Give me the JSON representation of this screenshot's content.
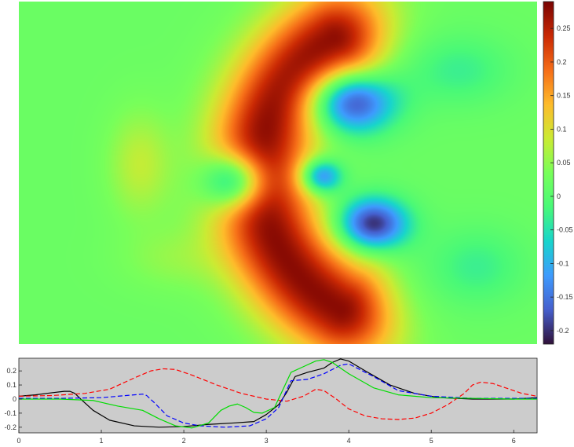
{
  "chart_data": [
    {
      "type": "heatmap",
      "colormap": "turbo",
      "colorbar": {
        "vmin": -0.22,
        "vmax": 0.29,
        "ticks": [
          0.25,
          0.2,
          0.15,
          0.1,
          0.05,
          0,
          -0.05,
          -0.1,
          -0.15,
          -0.2
        ],
        "tick_labels": [
          "0.25",
          "0.2",
          "0.15",
          "0.1",
          "0.05",
          "0",
          "-0.05",
          "-0.1",
          "-0.15",
          "-0.2"
        ],
        "placement": "right"
      },
      "background_value": 0.02,
      "features": [
        {
          "shape": "arc",
          "cx": 0.82,
          "cy": 0.0,
          "r": 0.92,
          "theta_start": -1.05,
          "theta_end": 1.0,
          "thickness": 0.3,
          "value": 0.28
        },
        {
          "shape": "blob",
          "x": 0.42,
          "y": 0.42,
          "sx": 0.25,
          "sy": 0.18,
          "value": -0.22
        },
        {
          "shape": "blob",
          "x": 0.55,
          "y": -0.3,
          "sx": 0.2,
          "sy": 0.15,
          "value": -0.21
        },
        {
          "shape": "blob",
          "x": -0.25,
          "y": -0.05,
          "sx": 0.18,
          "sy": 0.16,
          "value": -0.2
        },
        {
          "shape": "blob",
          "x": 0.25,
          "y": -0.02,
          "sx": 0.12,
          "sy": 0.1,
          "value": -0.17
        },
        {
          "shape": "blob",
          "x": -0.8,
          "y": 0.05,
          "sx": 0.18,
          "sy": 0.3,
          "value": 0.08
        },
        {
          "shape": "blob",
          "x": -0.6,
          "y": -0.5,
          "sx": 0.3,
          "sy": 0.18,
          "value": 0.05
        },
        {
          "shape": "blob",
          "x": 1.05,
          "y": 0.6,
          "sx": 0.3,
          "sy": 0.2,
          "value": -0.03
        },
        {
          "shape": "blob",
          "x": 1.15,
          "y": -0.55,
          "sx": 0.28,
          "sy": 0.22,
          "value": -0.03
        }
      ]
    },
    {
      "type": "line",
      "xlim": [
        0,
        6.2832
      ],
      "ylim": [
        -0.24,
        0.29
      ],
      "xticks": [
        0,
        1,
        2,
        3,
        4,
        5,
        6
      ],
      "yticks": [
        0.2,
        0.1,
        0,
        -0.1,
        -0.2
      ],
      "ytick_labels": [
        "0.2",
        "0.1",
        "0",
        "-0.1",
        "-0.2"
      ],
      "background": "#cccccc",
      "grid": false,
      "series": [
        {
          "color": "#000000",
          "dash": "solid",
          "x": [
            0,
            0.2,
            0.4,
            0.55,
            0.62,
            0.68,
            0.75,
            0.9,
            1.1,
            1.4,
            1.7,
            2.0,
            2.3,
            2.6,
            2.85,
            3.0,
            3.15,
            3.25,
            3.35,
            3.5,
            3.7,
            3.8,
            3.9,
            4.0,
            4.2,
            4.5,
            4.8,
            5.1,
            5.5,
            6.0,
            6.2832
          ],
          "y": [
            0.02,
            0.03,
            0.045,
            0.055,
            0.055,
            0.04,
            0.0,
            -0.08,
            -0.15,
            -0.19,
            -0.2,
            -0.195,
            -0.18,
            -0.17,
            -0.16,
            -0.11,
            -0.04,
            0.05,
            0.16,
            0.19,
            0.22,
            0.26,
            0.285,
            0.27,
            0.2,
            0.1,
            0.04,
            0.01,
            0.0,
            0.0,
            0.01
          ]
        },
        {
          "color": "#ff0000",
          "dash": "dashed",
          "x": [
            0,
            0.4,
            0.8,
            1.1,
            1.4,
            1.6,
            1.75,
            1.9,
            2.1,
            2.4,
            2.7,
            3.0,
            3.25,
            3.45,
            3.6,
            3.7,
            3.85,
            4.0,
            4.2,
            4.4,
            4.6,
            4.8,
            5.0,
            5.2,
            5.4,
            5.5,
            5.6,
            5.75,
            5.9,
            6.1,
            6.2832
          ],
          "y": [
            0.02,
            0.025,
            0.04,
            0.07,
            0.15,
            0.2,
            0.215,
            0.21,
            0.17,
            0.1,
            0.04,
            0.0,
            -0.015,
            0.02,
            0.07,
            0.06,
            0.0,
            -0.07,
            -0.12,
            -0.14,
            -0.145,
            -0.135,
            -0.1,
            -0.04,
            0.04,
            0.1,
            0.12,
            0.11,
            0.08,
            0.04,
            0.02
          ]
        },
        {
          "color": "#0000ff",
          "dash": "dashed",
          "x": [
            0,
            0.5,
            1.0,
            1.3,
            1.5,
            1.55,
            1.65,
            1.8,
            2.0,
            2.2,
            2.5,
            2.8,
            3.0,
            3.15,
            3.3,
            3.5,
            3.7,
            3.9,
            4.0,
            4.3,
            4.6,
            5.0,
            5.5,
            6.0,
            6.2832
          ],
          "y": [
            0.005,
            0.005,
            0.01,
            0.025,
            0.035,
            0.025,
            -0.03,
            -0.12,
            -0.17,
            -0.19,
            -0.2,
            -0.19,
            -0.14,
            -0.06,
            0.13,
            0.14,
            0.18,
            0.24,
            0.25,
            0.16,
            0.06,
            0.02,
            0.005,
            0.005,
            0.005
          ]
        },
        {
          "color": "#00dd00",
          "dash": "solid",
          "x": [
            0,
            0.5,
            0.9,
            1.2,
            1.5,
            1.7,
            1.9,
            2.1,
            2.3,
            2.45,
            2.55,
            2.65,
            2.75,
            2.85,
            2.95,
            3.1,
            3.3,
            3.45,
            3.6,
            3.7,
            3.8,
            4.0,
            4.3,
            4.6,
            5.0,
            5.5,
            6.0,
            6.2832
          ],
          "y": [
            0.0,
            0.0,
            -0.01,
            -0.05,
            -0.08,
            -0.14,
            -0.19,
            -0.205,
            -0.17,
            -0.08,
            -0.05,
            -0.035,
            -0.06,
            -0.095,
            -0.1,
            -0.06,
            0.19,
            0.23,
            0.27,
            0.28,
            0.26,
            0.18,
            0.08,
            0.03,
            0.01,
            0.005,
            0.0,
            0.0
          ]
        }
      ]
    }
  ]
}
